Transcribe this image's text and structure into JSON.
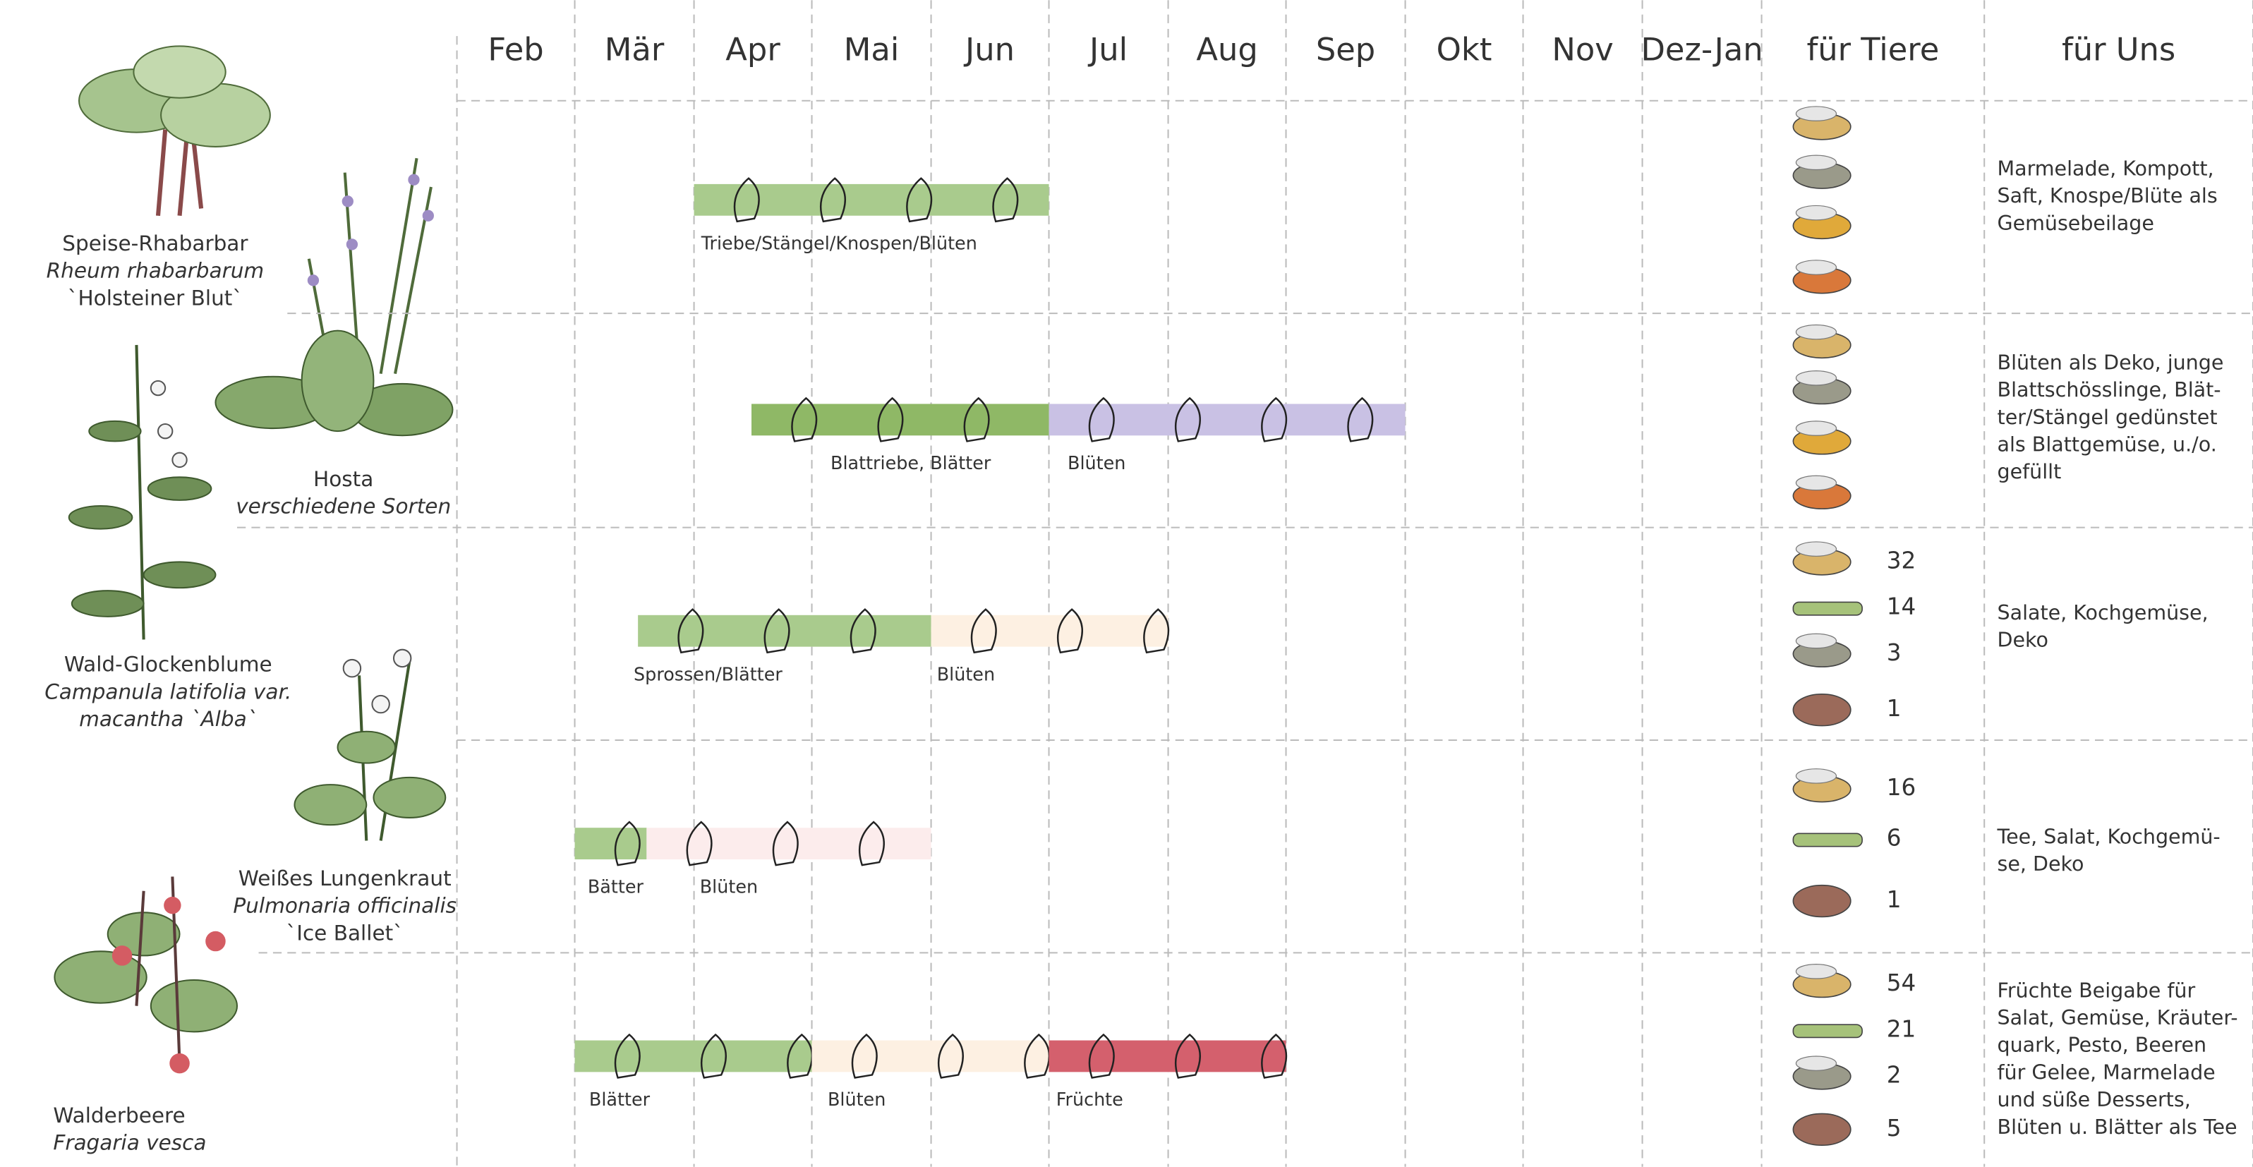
{
  "months": [
    "Feb",
    "Mär",
    "Apr",
    "Mai",
    "Jun",
    "Jul",
    "Aug",
    "Sep",
    "Okt",
    "Nov",
    "Dez-Jan"
  ],
  "headers": {
    "animals": "für Tiere",
    "uses": "für Uns"
  },
  "rows": [
    {
      "plant": {
        "name": "Speise-Rhabarbar",
        "latin": [
          "Rheum rhabarbarum"
        ],
        "cultivar": "`Holsteiner Blut`"
      },
      "segments": [
        {
          "label": "Triebe/Stängel/Knospen/Blüten"
        }
      ],
      "uses": [
        "Marmelade, Kompott,",
        "Saft, Knospe/Blüte als",
        "Gemüsebeilage"
      ]
    },
    {
      "plant": {
        "name": "Hosta",
        "latin": [
          "verschiedene Sorten"
        ]
      },
      "segments": [
        {
          "label": "Blattriebe, Blätter"
        },
        {
          "label": "Blüten"
        }
      ],
      "uses": [
        "Blüten als Deko, junge",
        "Blattschösslinge, Blät-",
        "ter/Stängel gedünstet",
        "als Blattgemüse, u./o.",
        "gefüllt"
      ]
    },
    {
      "plant": {
        "name": "Wald-Glockenblume",
        "latin": [
          "Campanula latifolia var.",
          "macantha `Alba`"
        ]
      },
      "segments": [
        {
          "label": "Sprossen/Blätter"
        },
        {
          "label": "Blüten"
        }
      ],
      "animal_counts": [
        32,
        14,
        3,
        1
      ],
      "uses": [
        "Salate, Kochgemüse,",
        "Deko"
      ]
    },
    {
      "plant": {
        "name": "Weißes Lungenkraut",
        "latin": [
          "Pulmonaria officinalis"
        ],
        "cultivar": "`Ice Ballet`"
      },
      "segments": [
        {
          "label": "Bätter"
        },
        {
          "label": "Blüten"
        }
      ],
      "animal_counts": [
        16,
        6,
        1
      ],
      "uses": [
        "Tee, Salat, Kochgemü-",
        "se, Deko"
      ]
    },
    {
      "plant": {
        "name": "Walderbeere",
        "latin": [
          "Fragaria vesca"
        ]
      },
      "segments": [
        {
          "label": "Blätter"
        },
        {
          "label": "Blüten"
        },
        {
          "label": "Früchte"
        }
      ],
      "animal_counts": [
        54,
        21,
        2,
        5
      ],
      "uses": [
        "Früchte Beigabe für",
        "Salat, Gemüse, Kräuter-",
        "quark, Pesto, Beeren",
        "für Gelee, Marmelade",
        "und süße Desserts,",
        "Blüten u. Blätter als Tee"
      ]
    }
  ]
}
